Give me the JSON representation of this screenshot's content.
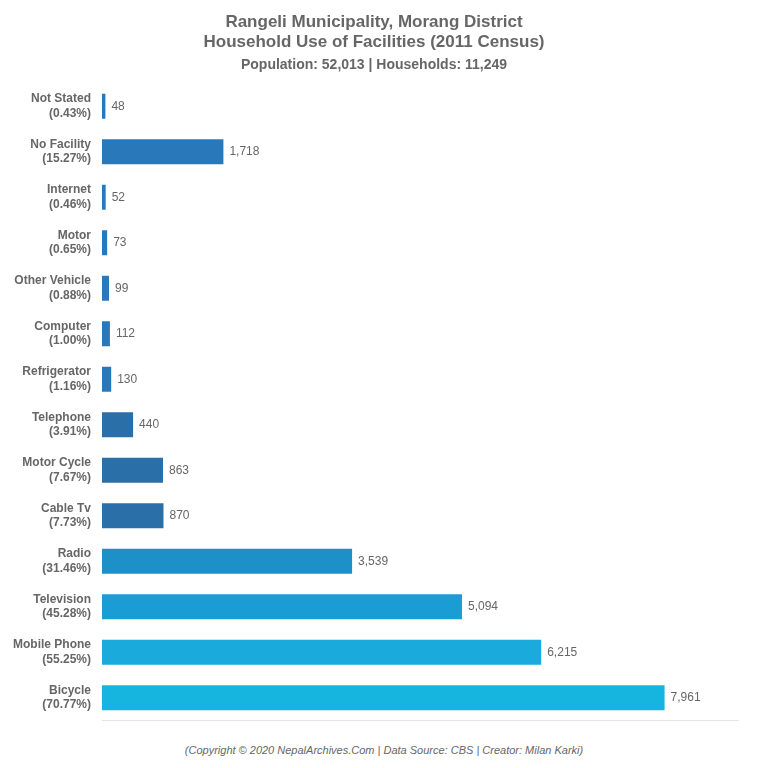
{
  "chart_data": {
    "type": "bar",
    "orientation": "horizontal",
    "title": "Rangeli Municipality, Morang District\nHousehold Use of Facilities (2011 Census)",
    "subtitle": "Population: 52,013 | Households: 11,249",
    "annotations": [
      "(Copyright © 2020 NepalArchives.Com | Data Source: CBS | Creator: Milan Karki)"
    ],
    "categories": [
      "Not Stated\n(0.43%)",
      "No Facility\n(15.27%)",
      "Internet\n(0.46%)",
      "Motor\n(0.65%)",
      "Other Vehicle\n(0.88%)",
      "Computer\n(1.00%)",
      "Refrigerator\n(1.16%)",
      "Telephone\n(3.91%)",
      "Motor Cycle\n(7.67%)",
      "Cable Tv\n(7.73%)",
      "Radio\n(31.46%)",
      "Television\n(45.28%)",
      "Mobile Phone\n(55.25%)",
      "Bicycle\n(70.77%)"
    ],
    "values": [
      48,
      1718,
      52,
      73,
      99,
      112,
      130,
      440,
      863,
      870,
      3539,
      5094,
      6215,
      7961
    ],
    "value_labels": [
      "48",
      "1,718",
      "52",
      "73",
      "99",
      "112",
      "130",
      "440",
      "863",
      "870",
      "3,539",
      "5,094",
      "6,215",
      "7,961"
    ],
    "colors": [
      "#2878ba",
      "#2878ba",
      "#2878ba",
      "#2878ba",
      "#2878ba",
      "#2878ba",
      "#2878ba",
      "#2a6fa8",
      "#2a6fa8",
      "#2a6fa8",
      "#1e90c8",
      "#1a9dd4",
      "#1aabdc",
      "#16b5e0"
    ],
    "xlim": [
      0,
      9000
    ],
    "grid": false,
    "data_labels": true,
    "tick_labels": "y"
  }
}
